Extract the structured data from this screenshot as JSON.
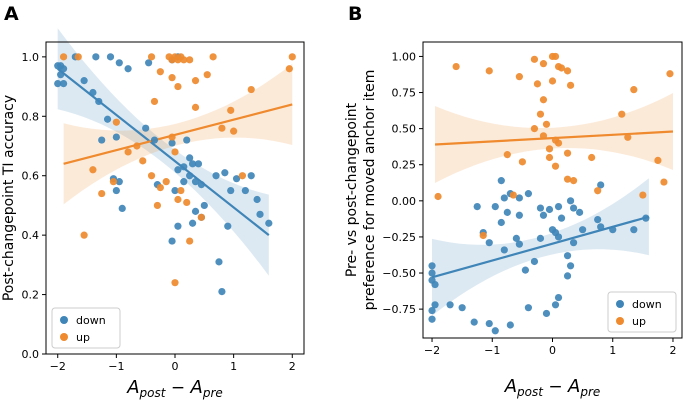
{
  "colors": {
    "down": "#3f85b8",
    "up": "#ef8a2e"
  },
  "legend": {
    "down": "down",
    "up": "up"
  },
  "chart_data": [
    {
      "panel": "A",
      "type": "scatter",
      "xlabel": "A_post − A_pre",
      "ylabel": "Post-changepoint TI accuracy",
      "xlim": [
        -2.2,
        2.2
      ],
      "ylim": [
        0.0,
        1.05
      ],
      "xticks": [
        -2,
        -1,
        0,
        1,
        2
      ],
      "yticks": [
        0.0,
        0.2,
        0.4,
        0.6,
        0.8,
        1.0
      ],
      "xtick_labels": [
        "−2",
        "−1",
        "0",
        "1",
        "2"
      ],
      "ytick_labels": [
        "0.0",
        "0.2",
        "0.4",
        "0.6",
        "0.8",
        "1.0"
      ],
      "legend_loc": "bottom-left",
      "series": [
        {
          "name": "down",
          "points": [
            [
              -2.0,
              0.97
            ],
            [
              -1.95,
              0.97
            ],
            [
              -1.9,
              0.96
            ],
            [
              -1.95,
              0.94
            ],
            [
              -2.0,
              0.91
            ],
            [
              -1.9,
              0.91
            ],
            [
              -1.7,
              1.0
            ],
            [
              -1.35,
              1.0
            ],
            [
              -1.1,
              1.0
            ],
            [
              -0.95,
              0.98
            ],
            [
              -0.8,
              0.96
            ],
            [
              -0.45,
              0.98
            ],
            [
              -0.05,
              0.99
            ],
            [
              0.05,
              1.0
            ],
            [
              -1.55,
              0.92
            ],
            [
              -1.4,
              0.88
            ],
            [
              -1.3,
              0.85
            ],
            [
              -1.15,
              0.79
            ],
            [
              -1.25,
              0.72
            ],
            [
              -1.0,
              0.73
            ],
            [
              -0.5,
              0.76
            ],
            [
              -0.35,
              0.72
            ],
            [
              -0.05,
              0.71
            ],
            [
              0.2,
              0.72
            ],
            [
              0.25,
              0.66
            ],
            [
              0.15,
              0.63
            ],
            [
              0.3,
              0.64
            ],
            [
              0.4,
              0.64
            ],
            [
              0.05,
              0.62
            ],
            [
              0.25,
              0.6
            ],
            [
              0.35,
              0.58
            ],
            [
              0.15,
              0.58
            ],
            [
              0.45,
              0.57
            ],
            [
              0.5,
              0.5
            ],
            [
              0.7,
              0.6
            ],
            [
              0.85,
              0.61
            ],
            [
              0.95,
              0.55
            ],
            [
              1.05,
              0.59
            ],
            [
              1.2,
              0.55
            ],
            [
              1.3,
              0.6
            ],
            [
              1.4,
              0.52
            ],
            [
              1.45,
              0.47
            ],
            [
              1.6,
              0.44
            ],
            [
              -1.05,
              0.59
            ],
            [
              -0.95,
              0.58
            ],
            [
              -1.0,
              0.55
            ],
            [
              -0.9,
              0.49
            ],
            [
              -0.3,
              0.57
            ],
            [
              0.0,
              0.55
            ],
            [
              0.35,
              0.48
            ],
            [
              0.45,
              0.46
            ],
            [
              0.3,
              0.44
            ],
            [
              0.05,
              0.43
            ],
            [
              -0.05,
              0.38
            ],
            [
              0.9,
              0.43
            ],
            [
              0.75,
              0.31
            ],
            [
              0.8,
              0.21
            ]
          ],
          "trend": [
            [
              -2.0,
              0.96
            ],
            [
              1.6,
              0.4
            ]
          ]
        },
        {
          "name": "up",
          "points": [
            [
              -1.9,
              1.0
            ],
            [
              -1.65,
              1.0
            ],
            [
              -0.4,
              1.0
            ],
            [
              -0.1,
              1.0
            ],
            [
              -0.05,
              0.99
            ],
            [
              0.0,
              1.0
            ],
            [
              0.05,
              0.99
            ],
            [
              0.1,
              1.0
            ],
            [
              0.15,
              0.99
            ],
            [
              0.25,
              0.99
            ],
            [
              0.65,
              1.0
            ],
            [
              2.0,
              1.0
            ],
            [
              -0.25,
              0.95
            ],
            [
              -0.05,
              0.93
            ],
            [
              0.05,
              0.9
            ],
            [
              0.35,
              0.92
            ],
            [
              0.55,
              0.94
            ],
            [
              1.3,
              0.89
            ],
            [
              1.95,
              0.96
            ],
            [
              -0.35,
              0.85
            ],
            [
              0.35,
              0.83
            ],
            [
              -1.0,
              0.78
            ],
            [
              -0.8,
              0.68
            ],
            [
              -0.65,
              0.7
            ],
            [
              -0.55,
              0.65
            ],
            [
              -0.05,
              0.73
            ],
            [
              0.0,
              0.68
            ],
            [
              0.8,
              0.76
            ],
            [
              0.95,
              0.82
            ],
            [
              1.0,
              0.75
            ],
            [
              1.15,
              0.6
            ],
            [
              -1.05,
              0.58
            ],
            [
              -0.4,
              0.6
            ],
            [
              -0.25,
              0.56
            ],
            [
              -0.15,
              0.58
            ],
            [
              -0.3,
              0.5
            ],
            [
              0.05,
              0.52
            ],
            [
              0.1,
              0.55
            ],
            [
              0.2,
              0.51
            ],
            [
              -1.25,
              0.54
            ],
            [
              -1.4,
              0.62
            ],
            [
              -1.55,
              0.4
            ],
            [
              0.45,
              0.46
            ],
            [
              0.25,
              0.38
            ],
            [
              0.0,
              0.24
            ]
          ],
          "trend": [
            [
              -1.9,
              0.64
            ],
            [
              2.0,
              0.84
            ]
          ]
        }
      ]
    },
    {
      "panel": "B",
      "type": "scatter",
      "xlabel": "A_post − A_pre",
      "ylabel_line1": "Pre- vs post-changepoint",
      "ylabel_line2": "preference for moved anchor item",
      "xlim": [
        -2.15,
        2.15
      ],
      "ylim": [
        -0.95,
        1.1
      ],
      "xticks": [
        -2,
        -1,
        0,
        1,
        2
      ],
      "yticks": [
        -0.75,
        -0.5,
        -0.25,
        0.0,
        0.25,
        0.5,
        0.75,
        1.0
      ],
      "xtick_labels": [
        "−2",
        "−1",
        "0",
        "1",
        "2"
      ],
      "ytick_labels": [
        "−0.75",
        "−0.50",
        "−0.25",
        "0.00",
        "0.25",
        "0.50",
        "0.75",
        "1.00"
      ],
      "legend_loc": "bottom-right",
      "series": [
        {
          "name": "down",
          "points": [
            [
              -2.0,
              -0.45
            ],
            [
              -2.0,
              -0.5
            ],
            [
              -2.0,
              -0.55
            ],
            [
              -1.95,
              -0.58
            ],
            [
              -1.95,
              -0.72
            ],
            [
              -2.0,
              -0.76
            ],
            [
              -2.0,
              -0.82
            ],
            [
              -1.7,
              -0.72
            ],
            [
              -1.5,
              -0.74
            ],
            [
              -1.3,
              -0.84
            ],
            [
              -1.05,
              -0.85
            ],
            [
              -0.95,
              -0.9
            ],
            [
              -0.7,
              -0.86
            ],
            [
              -0.4,
              -0.74
            ],
            [
              -0.1,
              -0.78
            ],
            [
              0.1,
              -0.67
            ],
            [
              0.05,
              -0.72
            ],
            [
              0.25,
              -0.52
            ],
            [
              0.3,
              -0.45
            ],
            [
              0.25,
              -0.38
            ],
            [
              -0.3,
              -0.42
            ],
            [
              -0.45,
              -0.48
            ],
            [
              -0.8,
              -0.34
            ],
            [
              -0.55,
              -0.3
            ],
            [
              -1.15,
              -0.22
            ],
            [
              -1.05,
              -0.29
            ],
            [
              -0.85,
              -0.15
            ],
            [
              -0.6,
              -0.26
            ],
            [
              -0.2,
              -0.26
            ],
            [
              0.1,
              -0.25
            ],
            [
              0.35,
              -0.29
            ],
            [
              0.5,
              -0.2
            ],
            [
              0.8,
              -0.18
            ],
            [
              1.0,
              -0.2
            ],
            [
              1.35,
              -0.2
            ],
            [
              1.55,
              -0.12
            ],
            [
              1.25,
              -0.7
            ],
            [
              -1.25,
              -0.04
            ],
            [
              -0.95,
              -0.04
            ],
            [
              -0.8,
              0.02
            ],
            [
              -0.7,
              0.05
            ],
            [
              -0.55,
              0.02
            ],
            [
              -0.75,
              -0.08
            ],
            [
              -0.55,
              -0.1
            ],
            [
              -0.2,
              -0.05
            ],
            [
              -0.15,
              -0.1
            ],
            [
              -0.05,
              -0.06
            ],
            [
              0.1,
              -0.04
            ],
            [
              0.15,
              -0.12
            ],
            [
              0.3,
              0.0
            ],
            [
              0.35,
              -0.05
            ],
            [
              0.45,
              -0.08
            ],
            [
              0.75,
              -0.13
            ],
            [
              0.8,
              0.11
            ],
            [
              -0.85,
              0.14
            ],
            [
              -0.4,
              0.05
            ],
            [
              0.0,
              -0.2
            ],
            [
              0.05,
              -0.22
            ]
          ],
          "trend": [
            [
              -2.0,
              -0.53
            ],
            [
              1.6,
              -0.11
            ]
          ]
        },
        {
          "name": "up",
          "points": [
            [
              -1.6,
              0.93
            ],
            [
              -1.05,
              0.9
            ],
            [
              -0.3,
              0.98
            ],
            [
              -0.15,
              0.95
            ],
            [
              0.0,
              1.0
            ],
            [
              0.05,
              1.0
            ],
            [
              0.1,
              0.93
            ],
            [
              0.15,
              0.92
            ],
            [
              0.25,
              0.9
            ],
            [
              -0.55,
              0.86
            ],
            [
              -0.25,
              0.81
            ],
            [
              0.0,
              0.83
            ],
            [
              0.3,
              0.8
            ],
            [
              -0.15,
              0.7
            ],
            [
              1.35,
              0.77
            ],
            [
              1.95,
              0.88
            ],
            [
              -0.2,
              0.6
            ],
            [
              -0.1,
              0.53
            ],
            [
              -0.3,
              0.5
            ],
            [
              -0.15,
              0.45
            ],
            [
              0.05,
              0.42
            ],
            [
              0.1,
              0.4
            ],
            [
              -0.05,
              0.36
            ],
            [
              0.25,
              0.33
            ],
            [
              1.15,
              0.6
            ],
            [
              1.25,
              0.44
            ],
            [
              -0.05,
              0.3
            ],
            [
              0.65,
              0.3
            ],
            [
              1.75,
              0.28
            ],
            [
              -0.5,
              0.27
            ],
            [
              -0.75,
              0.32
            ],
            [
              0.05,
              0.24
            ],
            [
              0.25,
              0.15
            ],
            [
              0.35,
              0.14
            ],
            [
              -0.65,
              0.04
            ],
            [
              0.75,
              0.07
            ],
            [
              1.5,
              0.04
            ],
            [
              1.85,
              0.13
            ],
            [
              -1.9,
              0.03
            ],
            [
              -1.15,
              -0.24
            ]
          ],
          "trend": [
            [
              -1.95,
              0.39
            ],
            [
              2.0,
              0.48
            ]
          ]
        }
      ]
    }
  ]
}
